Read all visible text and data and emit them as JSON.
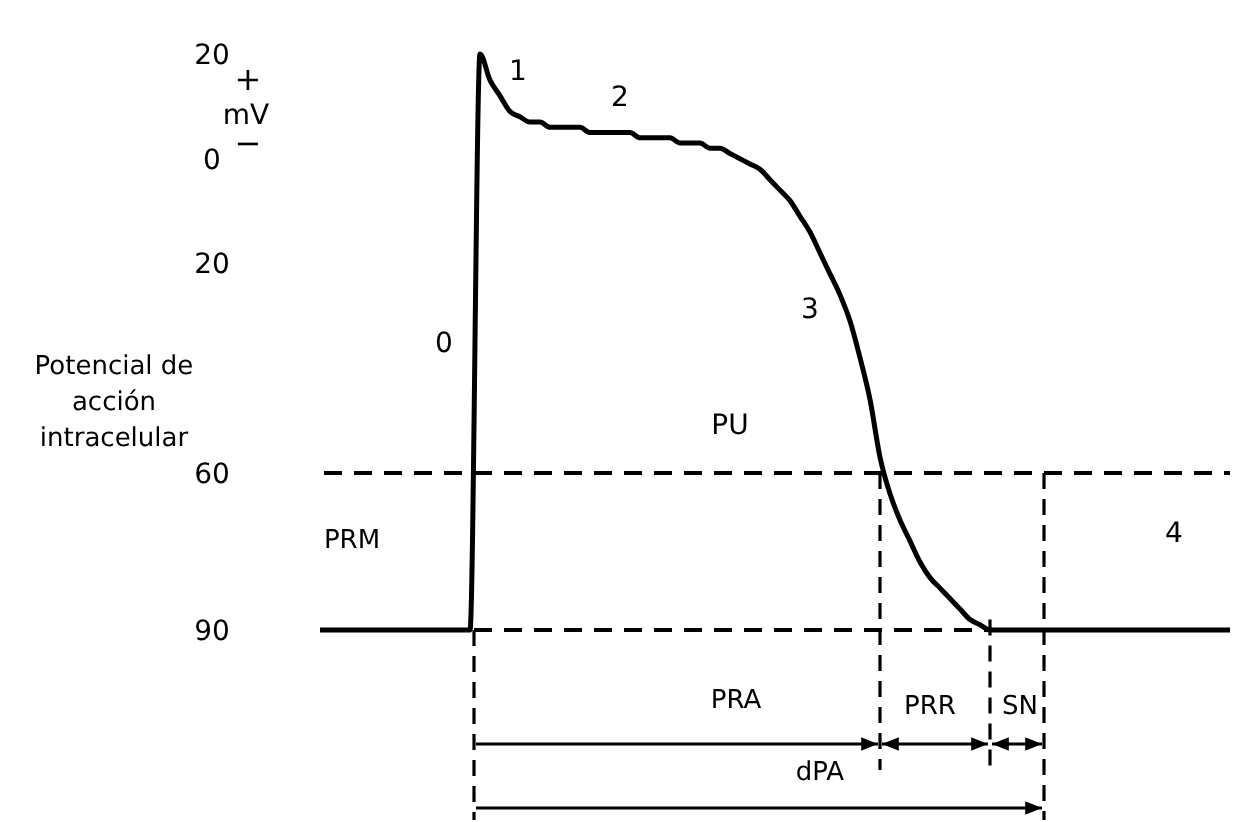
{
  "chart_data": {
    "type": "line",
    "ylabel": "Potencial de acción intracelular",
    "categories": [
      null,
      null,
      null,
      null,
      null,
      null,
      null,
      null,
      null,
      null,
      null,
      null,
      null,
      null,
      null,
      null,
      null,
      null,
      null,
      null,
      null,
      null,
      null,
      null,
      null,
      null,
      null,
      null,
      null,
      null,
      null,
      null,
      null,
      null,
      null,
      null,
      null,
      null,
      null,
      null,
      null,
      null,
      null,
      null,
      null,
      null,
      null,
      null,
      null,
      null,
      null,
      null,
      null,
      null,
      null,
      null,
      null,
      null,
      null,
      null,
      null,
      null,
      null,
      null,
      null,
      null,
      null,
      null,
      null,
      null,
      null,
      null,
      null,
      null,
      null,
      null,
      null,
      null,
      null,
      null,
      null,
      null,
      null,
      null,
      null,
      null,
      null,
      null,
      null,
      null,
      null,
      null
    ],
    "series": [
      {
        "color": "#000000",
        "values": [
          -90,
          -90,
          -90,
          -90,
          -90,
          -90,
          -90,
          -90,
          -90,
          -90,
          -90,
          -90,
          -90,
          -90,
          -90,
          -90,
          20,
          15,
          12,
          9,
          8,
          7,
          7,
          6,
          6,
          6,
          6,
          5,
          5,
          5,
          5,
          5,
          4,
          4,
          4,
          4,
          3,
          3,
          3,
          2,
          2,
          1,
          0,
          -1,
          -2,
          -4,
          -6,
          -8,
          -11,
          -14,
          -18,
          -22,
          -26,
          -31,
          -38,
          -46,
          -57,
          -64,
          -69,
          -73,
          -77,
          -80,
          -82,
          -84,
          -86,
          -88,
          -89,
          -90,
          -90,
          -90,
          -90,
          -90,
          -90,
          -90,
          -90,
          -90,
          -90,
          -90,
          -90,
          -90,
          -90,
          -90,
          -90,
          -90,
          -90,
          -90,
          -90,
          -90,
          -90,
          -90,
          -90,
          -90
        ]
      }
    ],
    "ylim": [
      -90,
      20
    ],
    "yticks": [
      {
        "value": 20,
        "label": "20"
      },
      0,
      {
        "value": -20,
        "label": "20"
      },
      {
        "value": -60,
        "label": "60"
      },
      {
        "value": -90,
        "label": "90"
      }
    ],
    "tick_labels": "y",
    "grid": false,
    "marker": "none",
    "line_style": "solid",
    "ref_lines": [
      {
        "axis": "y",
        "value": -60,
        "color": "#000000",
        "line_style": "dashed"
      }
    ],
    "annotations": [
      "+",
      "mV",
      "−",
      "0",
      "1",
      "2",
      "3",
      "4",
      "PU",
      "PRM",
      "PRA",
      "PRR",
      "SN",
      "dPA"
    ]
  }
}
